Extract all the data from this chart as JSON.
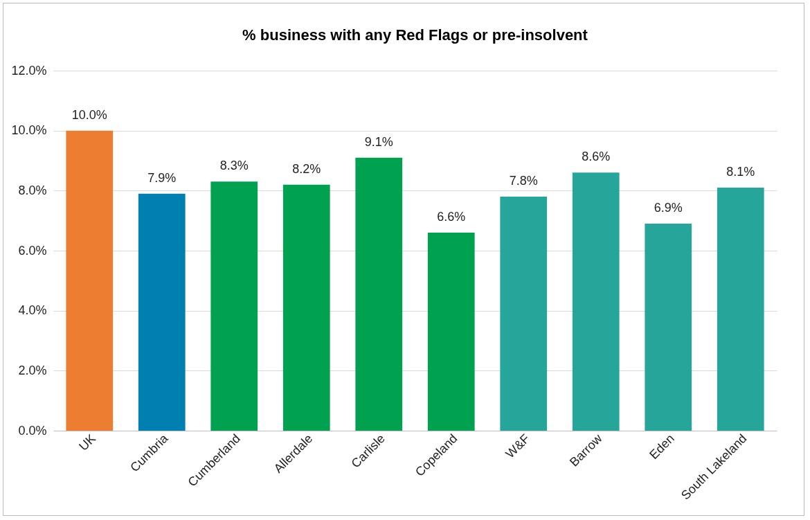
{
  "chart_data": {
    "type": "bar",
    "title": "% business with any Red Flags or pre-insolvent",
    "categories": [
      "UK",
      "Cumbria",
      "Cumberland",
      "Allerdale",
      "Carlisle",
      "Copeland",
      "W&F",
      "Barrow",
      "Eden",
      "South Lakeland"
    ],
    "values": [
      10.0,
      7.9,
      8.3,
      8.2,
      9.1,
      6.6,
      7.8,
      8.6,
      6.9,
      8.1
    ],
    "value_labels": [
      "10.0%",
      "7.9%",
      "8.3%",
      "8.2%",
      "9.1%",
      "6.6%",
      "7.8%",
      "8.6%",
      "6.9%",
      "8.1%"
    ],
    "colors": [
      "#ed7d31",
      "#0080b0",
      "#00a14f",
      "#00a14f",
      "#00a14f",
      "#00a14f",
      "#26a69a",
      "#26a69a",
      "#26a69a",
      "#26a69a"
    ],
    "ylim": [
      0,
      12
    ],
    "yticks": [
      {
        "value": 0,
        "label": "0.0%"
      },
      {
        "value": 2,
        "label": "2.0%"
      },
      {
        "value": 4,
        "label": "4.0%"
      },
      {
        "value": 6,
        "label": "6.0%"
      },
      {
        "value": 8,
        "label": "8.0%"
      },
      {
        "value": 10,
        "label": "10.0%"
      },
      {
        "value": 12,
        "label": "12.0%"
      }
    ],
    "grid": "y"
  }
}
